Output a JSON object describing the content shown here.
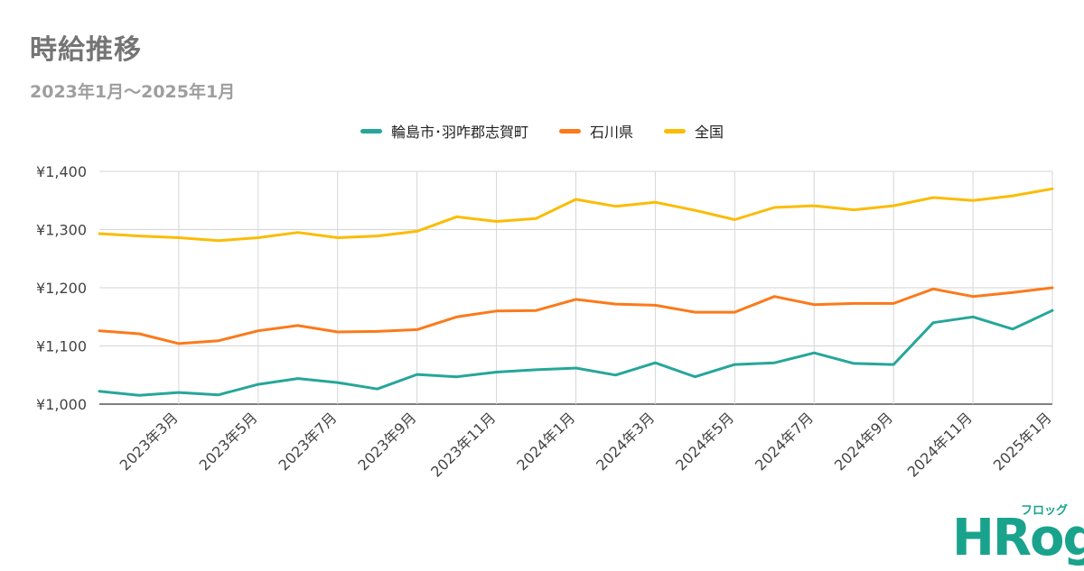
{
  "title": "時給推移",
  "subtitle": "2023年1月〜2025年1月",
  "logo": {
    "text": "HRog",
    "sub": "フロッグ"
  },
  "chart_data": {
    "type": "line",
    "title": "時給推移",
    "subtitle": "2023年1月〜2025年1月",
    "x": [
      "2023年1月",
      "2023年2月",
      "2023年3月",
      "2023年4月",
      "2023年5月",
      "2023年6月",
      "2023年7月",
      "2023年8月",
      "2023年9月",
      "2023年10月",
      "2023年11月",
      "2023年12月",
      "2024年1月",
      "2024年2月",
      "2024年3月",
      "2024年4月",
      "2024年5月",
      "2024年6月",
      "2024年7月",
      "2024年8月",
      "2024年9月",
      "2024年10月",
      "2024年11月",
      "2024年12月",
      "2025年1月"
    ],
    "x_tick_labels": [
      "2023年3月",
      "2023年5月",
      "2023年7月",
      "2023年9月",
      "2023年11月",
      "2024年1月",
      "2024年3月",
      "2024年5月",
      "2024年7月",
      "2024年9月",
      "2024年11月",
      "2025年1月"
    ],
    "x_tick_indices": [
      2,
      4,
      6,
      8,
      10,
      12,
      14,
      16,
      18,
      20,
      22,
      24
    ],
    "ylim": [
      1000,
      1400
    ],
    "y_ticks": [
      1000,
      1100,
      1200,
      1300,
      1400
    ],
    "y_tick_labels": [
      "¥1,000",
      "¥1,100",
      "¥1,200",
      "¥1,300",
      "¥1,400"
    ],
    "grid": true,
    "legend_position": "top-center",
    "series": [
      {
        "name": "輪島市･羽咋郡志賀町",
        "color": "#26a69a",
        "values": [
          1022,
          1015,
          1020,
          1016,
          1034,
          1044,
          1037,
          1026,
          1051,
          1047,
          1055,
          1059,
          1062,
          1050,
          1071,
          1047,
          1068,
          1071,
          1088,
          1070,
          1068,
          1140,
          1150,
          1129,
          1161
        ]
      },
      {
        "name": "石川県",
        "color": "#fb7a1b",
        "values": [
          1126,
          1121,
          1104,
          1109,
          1126,
          1135,
          1124,
          1125,
          1128,
          1150,
          1160,
          1161,
          1180,
          1172,
          1170,
          1158,
          1158,
          1185,
          1171,
          1173,
          1173,
          1198,
          1185,
          1192,
          1200
        ]
      },
      {
        "name": "全国",
        "color": "#fbbc04",
        "values": [
          1293,
          1289,
          1286,
          1281,
          1286,
          1295,
          1286,
          1289,
          1297,
          1322,
          1314,
          1319,
          1352,
          1340,
          1347,
          1333,
          1317,
          1338,
          1341,
          1334,
          1341,
          1355,
          1350,
          1358,
          1370
        ]
      }
    ]
  }
}
